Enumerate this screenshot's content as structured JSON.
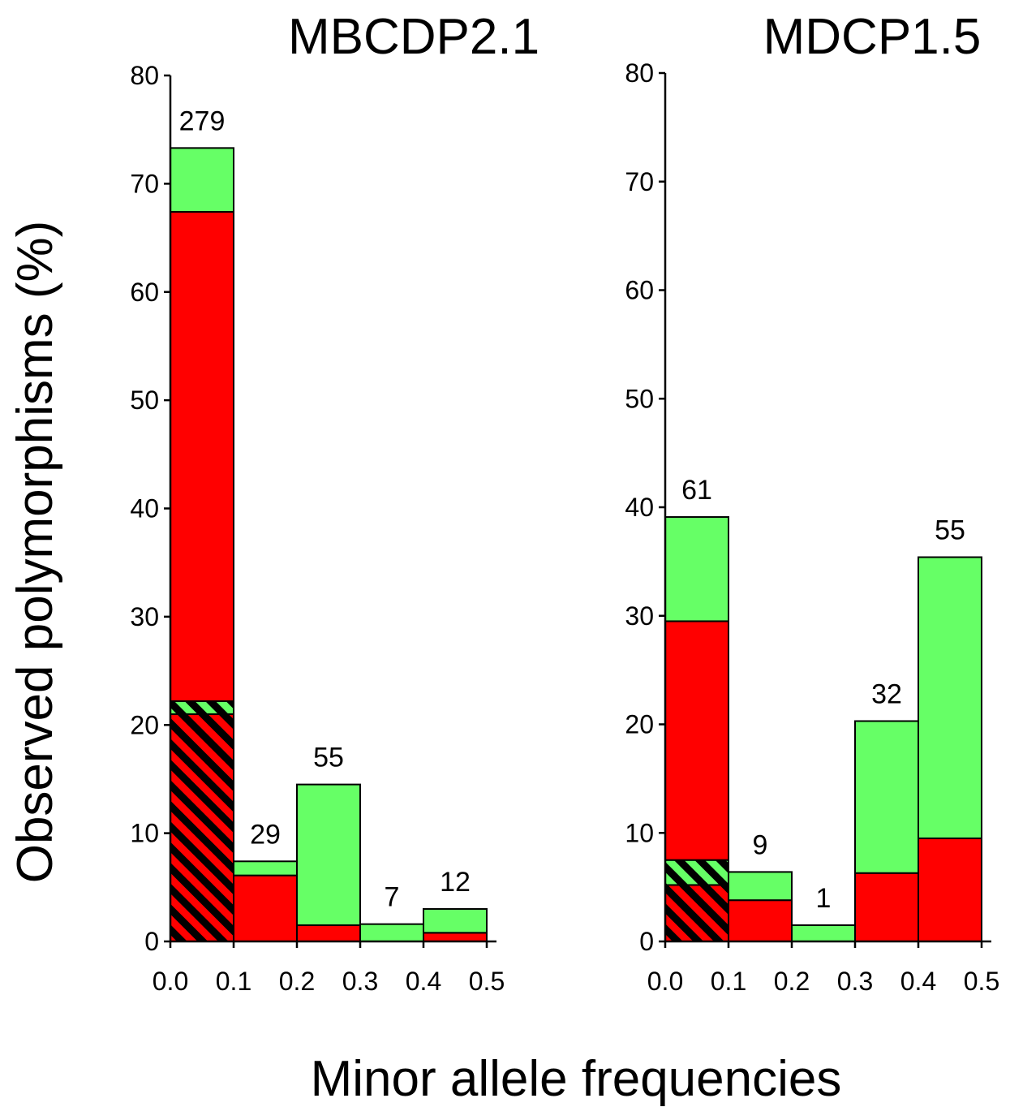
{
  "figure": {
    "ylabel": "Observed polymorphisms (%)",
    "xlabel": "Minor allele frequencies"
  },
  "colors": {
    "green": "#66ff66",
    "red": "#ff0000",
    "hatch_dark": "#000000"
  },
  "chart_data": [
    {
      "type": "bar",
      "title": "MBCDP2.1",
      "xlim": [
        0.0,
        0.5
      ],
      "ylim": [
        0,
        80
      ],
      "x_ticks": [
        "0.0",
        "0.1",
        "0.2",
        "0.3",
        "0.4",
        "0.5"
      ],
      "y_ticks": [
        "0",
        "10",
        "20",
        "30",
        "40",
        "50",
        "60",
        "70",
        "80"
      ],
      "categories": [
        "0.0-0.1",
        "0.1-0.2",
        "0.2-0.3",
        "0.3-0.4",
        "0.4-0.5"
      ],
      "bins": [
        [
          0.0,
          0.1
        ],
        [
          0.1,
          0.2
        ],
        [
          0.2,
          0.3
        ],
        [
          0.3,
          0.4
        ],
        [
          0.4,
          0.5
        ]
      ],
      "counts": [
        "279",
        "29",
        "55",
        "7",
        "12"
      ],
      "series": [
        {
          "name": "",
          "color": "red",
          "hatched": true,
          "values": [
            21.0,
            0,
            0,
            0,
            0
          ]
        },
        {
          "name": "",
          "color": "green",
          "hatched": true,
          "values": [
            1.2,
            0,
            0,
            0,
            0
          ]
        },
        {
          "name": "",
          "color": "red",
          "hatched": false,
          "values": [
            45.2,
            6.1,
            1.5,
            0,
            0.8
          ]
        },
        {
          "name": "",
          "color": "green",
          "hatched": false,
          "values": [
            5.9,
            1.3,
            13.0,
            1.6,
            2.2
          ]
        }
      ]
    },
    {
      "type": "bar",
      "title": "MDCP1.5",
      "xlim": [
        0.0,
        0.5
      ],
      "ylim": [
        0,
        80
      ],
      "x_ticks": [
        "0.0",
        "0.1",
        "0.2",
        "0.3",
        "0.4",
        "0.5"
      ],
      "y_ticks": [
        "0",
        "10",
        "20",
        "30",
        "40",
        "50",
        "60",
        "70",
        "80"
      ],
      "categories": [
        "0.0-0.1",
        "0.1-0.2",
        "0.2-0.3",
        "0.3-0.4",
        "0.4-0.5"
      ],
      "bins": [
        [
          0.0,
          0.1
        ],
        [
          0.1,
          0.2
        ],
        [
          0.2,
          0.3
        ],
        [
          0.3,
          0.4
        ],
        [
          0.4,
          0.5
        ]
      ],
      "counts": [
        "61",
        "9",
        "1",
        "32",
        "55"
      ],
      "series": [
        {
          "name": "",
          "color": "red",
          "hatched": true,
          "values": [
            5.2,
            0,
            0,
            0,
            0
          ]
        },
        {
          "name": "",
          "color": "green",
          "hatched": true,
          "values": [
            2.3,
            0,
            0,
            0,
            0
          ]
        },
        {
          "name": "",
          "color": "red",
          "hatched": false,
          "values": [
            22.0,
            3.8,
            0,
            6.3,
            9.5
          ]
        },
        {
          "name": "",
          "color": "green",
          "hatched": false,
          "values": [
            9.6,
            2.6,
            1.5,
            14.0,
            25.9
          ]
        }
      ]
    }
  ]
}
